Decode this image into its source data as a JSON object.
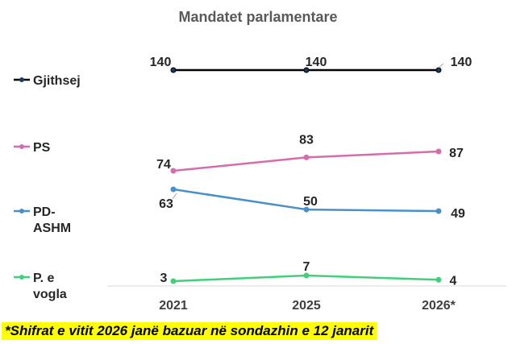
{
  "chart_data": {
    "type": "line",
    "title": "Mandatet parlamentare",
    "categories": [
      "2021",
      "2025",
      "2026*"
    ],
    "series": [
      {
        "name": "Gjithsej",
        "values": [
          140,
          140,
          140
        ],
        "color": "#000000"
      },
      {
        "name": "PS",
        "values": [
          74,
          83,
          87
        ],
        "color": "#d56cae"
      },
      {
        "name": "PD-ASHM",
        "values": [
          63,
          50,
          49
        ],
        "color": "#4a90c8"
      },
      {
        "name": "P. e vogla",
        "values": [
          3,
          7,
          4
        ],
        "color": "#3fd17a"
      }
    ],
    "legend": "left",
    "grid": false
  },
  "footnote": "*Shifrat e vitit 2026 janë bazuar në sondazhin e 12 janarit"
}
